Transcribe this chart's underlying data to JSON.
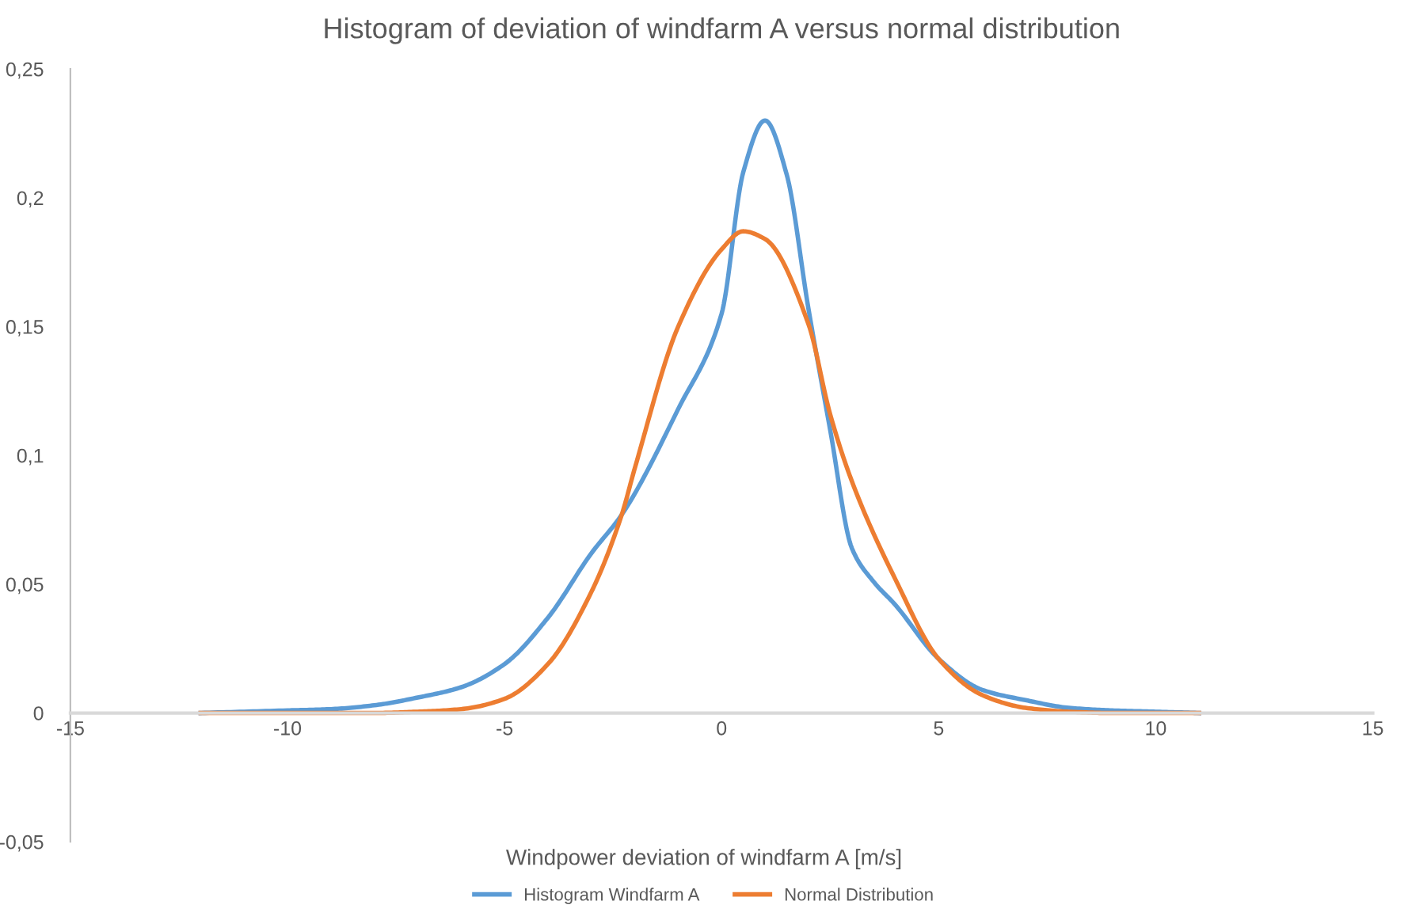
{
  "chart_data": {
    "type": "line",
    "title": "Histogram of deviation of windfarm A versus normal distribution",
    "xlabel": "Windpower deviation of windfarm A [m/s]",
    "series": [
      {
        "name": "Histogram Windfarm A",
        "color": "#5b9bd5",
        "x": [
          -12,
          -10,
          -9,
          -8,
          -7,
          -6,
          -5,
          -4,
          -3,
          -2.3,
          -1,
          0,
          0.5,
          1,
          1.5,
          2,
          2.5,
          3,
          3.5,
          4,
          5,
          6,
          7,
          8,
          9,
          10,
          11
        ],
        "values": [
          0,
          0.001,
          0.0015,
          0.003,
          0.006,
          0.01,
          0.019,
          0.037,
          0.062,
          0.077,
          0.118,
          0.155,
          0.21,
          0.23,
          0.209,
          0.157,
          0.11,
          0.064,
          0.051,
          0.042,
          0.021,
          0.009,
          0.005,
          0.002,
          0.001,
          0.0005,
          0
        ]
      },
      {
        "name": "Normal Distribution",
        "color": "#ed7d31",
        "x": [
          -12,
          -10,
          -8,
          -7,
          -6,
          -5,
          -4,
          -3,
          -2.3,
          -2,
          -1,
          0,
          0.5,
          1,
          2,
          2.5,
          3,
          4,
          5,
          6,
          7,
          8,
          9,
          10,
          11
        ],
        "values": [
          0,
          0,
          0,
          0.0005,
          0.0015,
          0.0055,
          0.019,
          0.047,
          0.077,
          0.095,
          0.15,
          0.18,
          0.187,
          0.184,
          0.151,
          0.116,
          0.09,
          0.052,
          0.021,
          0.007,
          0.002,
          0.0005,
          0,
          0,
          0
        ]
      }
    ],
    "xlim": [
      -15,
      15
    ],
    "xticks": [
      -15,
      -10,
      -5,
      0,
      5,
      10,
      15
    ],
    "ylim": [
      -0.05,
      0.25
    ],
    "yticks": [
      {
        "value": -0.05,
        "label": "-0,05"
      },
      {
        "value": 0,
        "label": "0"
      },
      {
        "value": 0.05,
        "label": "0,05"
      },
      {
        "value": 0.1,
        "label": "0,1"
      },
      {
        "value": 0.15,
        "label": "0,15"
      },
      {
        "value": 0.2,
        "label": "0,2"
      },
      {
        "value": 0.25,
        "label": "0,25"
      }
    ],
    "grid": false,
    "legend": "bottom",
    "marker": "none",
    "line_style": "solid"
  }
}
